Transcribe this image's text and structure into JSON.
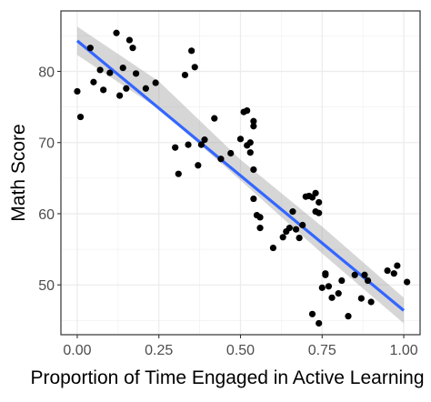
{
  "chart_data": {
    "type": "scatter",
    "xlabel": "Proportion of Time Engaged in Active Learning",
    "ylabel": "Math Score",
    "xlim": [
      -0.05,
      1.05
    ],
    "ylim": [
      43,
      88.5
    ],
    "x_ticks": [
      0.0,
      0.25,
      0.5,
      0.75,
      1.0
    ],
    "x_tick_labels": [
      "0.00",
      "0.25",
      "0.50",
      "0.75",
      "1.00"
    ],
    "y_ticks": [
      50,
      60,
      70,
      80
    ],
    "y_tick_labels": [
      "50",
      "60",
      "70",
      "80"
    ],
    "grid": true,
    "trend_line": {
      "type": "linear",
      "x": [
        0.0,
        1.0
      ],
      "y": [
        84.3,
        46.4
      ],
      "color": "#3366FF"
    },
    "confidence_band": {
      "x": [
        0.0,
        0.25,
        0.5,
        0.75,
        1.0
      ],
      "lower": [
        82.3,
        74.7,
        64.7,
        54.4,
        44.6
      ],
      "upper": [
        86.3,
        78.6,
        67.6,
        58.2,
        48.2
      ],
      "color": "#999999"
    },
    "points": {
      "x": [
        0.0,
        0.01,
        0.04,
        0.05,
        0.07,
        0.08,
        0.1,
        0.12,
        0.13,
        0.14,
        0.15,
        0.16,
        0.17,
        0.18,
        0.21,
        0.24,
        0.3,
        0.31,
        0.33,
        0.34,
        0.35,
        0.36,
        0.37,
        0.38,
        0.39,
        0.42,
        0.44,
        0.47,
        0.5,
        0.51,
        0.52,
        0.52,
        0.53,
        0.53,
        0.54,
        0.54,
        0.54,
        0.54,
        0.55,
        0.56,
        0.56,
        0.6,
        0.63,
        0.64,
        0.65,
        0.66,
        0.67,
        0.68,
        0.69,
        0.7,
        0.71,
        0.72,
        0.73,
        0.73,
        0.74,
        0.74,
        0.72,
        0.74,
        0.75,
        0.76,
        0.76,
        0.77,
        0.78,
        0.8,
        0.81,
        0.83,
        0.85,
        0.87,
        0.88,
        0.89,
        0.9,
        0.95,
        0.97,
        0.98,
        1.01
      ],
      "y": [
        77.2,
        73.6,
        83.3,
        78.5,
        80.2,
        77.4,
        79.8,
        85.4,
        76.6,
        80.5,
        77.6,
        84.4,
        83.3,
        79.7,
        77.6,
        78.4,
        69.3,
        65.6,
        79.5,
        69.7,
        82.9,
        80.6,
        66.8,
        69.7,
        70.4,
        73.4,
        67.7,
        68.5,
        70.5,
        74.3,
        74.5,
        69.6,
        70.0,
        68.6,
        73.0,
        72.3,
        66.2,
        62.1,
        59.8,
        59.5,
        58.0,
        55.2,
        56.7,
        57.5,
        58.0,
        60.3,
        57.8,
        56.6,
        58.4,
        62.4,
        62.5,
        62.3,
        62.9,
        60.3,
        60.1,
        61.6,
        45.9,
        44.6,
        49.6,
        51.4,
        51.6,
        49.8,
        48.2,
        48.8,
        50.6,
        45.6,
        51.4,
        48.1,
        51.4,
        50.6,
        47.6,
        52.0,
        51.6,
        52.7,
        50.4
      ]
    }
  }
}
